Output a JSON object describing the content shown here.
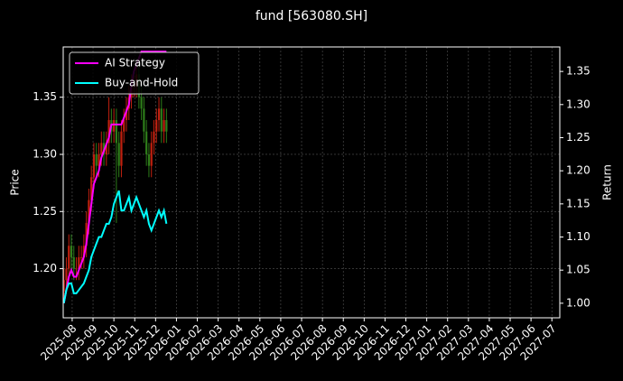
{
  "chart_data": {
    "type": "candlestick",
    "title": "fund [563080.SH]",
    "ylabel": "Price",
    "y2label": "Return",
    "x": [
      -0.4,
      -0.28,
      -0.16,
      -0.04,
      0.08,
      0.2,
      0.32,
      0.44,
      0.56,
      0.68,
      0.8,
      0.92,
      1.04,
      1.16,
      1.28,
      1.4,
      1.52,
      1.64,
      1.76,
      1.88,
      2.0,
      2.12,
      2.24,
      2.36,
      2.48,
      2.6,
      2.72,
      2.84,
      2.96,
      3.08,
      3.2,
      3.32,
      3.44,
      3.56,
      3.68,
      3.8,
      3.92,
      4.04,
      4.16,
      4.28,
      4.4,
      4.52
    ],
    "open": [
      1.18,
      1.19,
      1.2,
      1.22,
      1.21,
      1.2,
      1.2,
      1.21,
      1.21,
      1.22,
      1.24,
      1.26,
      1.28,
      1.3,
      1.29,
      1.3,
      1.31,
      1.3,
      1.31,
      1.33,
      1.32,
      1.33,
      1.31,
      1.29,
      1.32,
      1.33,
      1.34,
      1.35,
      1.36,
      1.36,
      1.37,
      1.35,
      1.34,
      1.32,
      1.3,
      1.29,
      1.31,
      1.32,
      1.33,
      1.34,
      1.32,
      1.33
    ],
    "high": [
      1.2,
      1.21,
      1.23,
      1.23,
      1.22,
      1.21,
      1.22,
      1.22,
      1.23,
      1.25,
      1.27,
      1.29,
      1.31,
      1.31,
      1.31,
      1.32,
      1.32,
      1.32,
      1.35,
      1.34,
      1.34,
      1.34,
      1.32,
      1.33,
      1.34,
      1.35,
      1.36,
      1.37,
      1.37,
      1.38,
      1.38,
      1.36,
      1.35,
      1.33,
      1.31,
      1.32,
      1.33,
      1.34,
      1.35,
      1.35,
      1.34,
      1.34
    ],
    "low": [
      1.17,
      1.18,
      1.19,
      1.2,
      1.19,
      1.19,
      1.19,
      1.2,
      1.2,
      1.21,
      1.23,
      1.25,
      1.27,
      1.28,
      1.28,
      1.29,
      1.29,
      1.29,
      1.3,
      1.31,
      1.31,
      1.24,
      1.28,
      1.28,
      1.31,
      1.32,
      1.33,
      1.34,
      1.35,
      1.35,
      1.34,
      1.33,
      1.31,
      1.29,
      1.28,
      1.28,
      1.3,
      1.31,
      1.32,
      1.31,
      1.31,
      1.31
    ],
    "close": [
      1.19,
      1.2,
      1.22,
      1.21,
      1.2,
      1.2,
      1.21,
      1.21,
      1.22,
      1.24,
      1.26,
      1.28,
      1.3,
      1.29,
      1.3,
      1.31,
      1.3,
      1.31,
      1.33,
      1.32,
      1.33,
      1.31,
      1.29,
      1.32,
      1.33,
      1.34,
      1.35,
      1.36,
      1.36,
      1.37,
      1.35,
      1.34,
      1.32,
      1.3,
      1.29,
      1.31,
      1.32,
      1.33,
      1.34,
      1.32,
      1.33,
      1.32
    ],
    "up_color": "#c0200f",
    "down_color": "#2e7d1a",
    "series": [
      {
        "name": "AI Strategy",
        "color": "#ff00ff",
        "axis": "y2",
        "values": [
          1.0,
          1.02,
          1.04,
          1.05,
          1.04,
          1.04,
          1.05,
          1.06,
          1.07,
          1.09,
          1.12,
          1.15,
          1.18,
          1.19,
          1.2,
          1.22,
          1.23,
          1.24,
          1.25,
          1.27,
          1.27,
          1.27,
          1.27,
          1.27,
          1.28,
          1.29,
          1.3,
          1.33,
          1.35,
          1.36,
          1.37,
          1.38,
          1.38,
          1.38,
          1.38,
          1.38,
          1.38,
          1.38,
          1.38,
          1.38,
          1.38,
          1.38
        ]
      },
      {
        "name": "Buy-and-Hold",
        "color": "#00ffff",
        "axis": "y2",
        "values": [
          1.0,
          1.02,
          1.03,
          1.03,
          1.015,
          1.015,
          1.02,
          1.025,
          1.03,
          1.04,
          1.05,
          1.07,
          1.08,
          1.09,
          1.1,
          1.1,
          1.11,
          1.12,
          1.12,
          1.13,
          1.15,
          1.16,
          1.17,
          1.14,
          1.14,
          1.15,
          1.16,
          1.14,
          1.15,
          1.16,
          1.15,
          1.14,
          1.13,
          1.14,
          1.12,
          1.11,
          1.12,
          1.13,
          1.14,
          1.13,
          1.14,
          1.12
        ]
      }
    ],
    "xlim": [
      -0.43,
      23.38
    ],
    "xticks": [
      {
        "value": 0,
        "label": "2025-08"
      },
      {
        "value": 1,
        "label": "2025-09"
      },
      {
        "value": 2,
        "label": "2025-10"
      },
      {
        "value": 3,
        "label": "2025-11"
      },
      {
        "value": 4,
        "label": "2025-12"
      },
      {
        "value": 5,
        "label": "2026-01"
      },
      {
        "value": 6,
        "label": "2026-02"
      },
      {
        "value": 7,
        "label": "2026-03"
      },
      {
        "value": 8,
        "label": "2026-04"
      },
      {
        "value": 9,
        "label": "2026-05"
      },
      {
        "value": 10,
        "label": "2026-06"
      },
      {
        "value": 11,
        "label": "2026-07"
      },
      {
        "value": 12,
        "label": "2026-08"
      },
      {
        "value": 13,
        "label": "2026-09"
      },
      {
        "value": 14,
        "label": "2026-10"
      },
      {
        "value": 15,
        "label": "2026-11"
      },
      {
        "value": 16,
        "label": "2026-12"
      },
      {
        "value": 17,
        "label": "2027-01"
      },
      {
        "value": 18,
        "label": "2027-02"
      },
      {
        "value": 19,
        "label": "2027-03"
      },
      {
        "value": 20,
        "label": "2027-04"
      },
      {
        "value": 21,
        "label": "2027-05"
      },
      {
        "value": 22,
        "label": "2027-06"
      },
      {
        "value": 23,
        "label": "2027-07"
      }
    ],
    "ylim": [
      1.157,
      1.394
    ],
    "yticks": [
      {
        "value": 1.2,
        "label": "1.20"
      },
      {
        "value": 1.25,
        "label": "1.25"
      },
      {
        "value": 1.3,
        "label": "1.30"
      },
      {
        "value": 1.35,
        "label": "1.35"
      }
    ],
    "y2lim": [
      0.978,
      1.387
    ],
    "y2ticks": [
      {
        "value": 1.0,
        "label": "1.00"
      },
      {
        "value": 1.05,
        "label": "1.05"
      },
      {
        "value": 1.1,
        "label": "1.10"
      },
      {
        "value": 1.15,
        "label": "1.15"
      },
      {
        "value": 1.2,
        "label": "1.20"
      },
      {
        "value": 1.25,
        "label": "1.25"
      },
      {
        "value": 1.3,
        "label": "1.30"
      },
      {
        "value": 1.35,
        "label": "1.35"
      }
    ],
    "grid": true,
    "legend": "upper left"
  }
}
